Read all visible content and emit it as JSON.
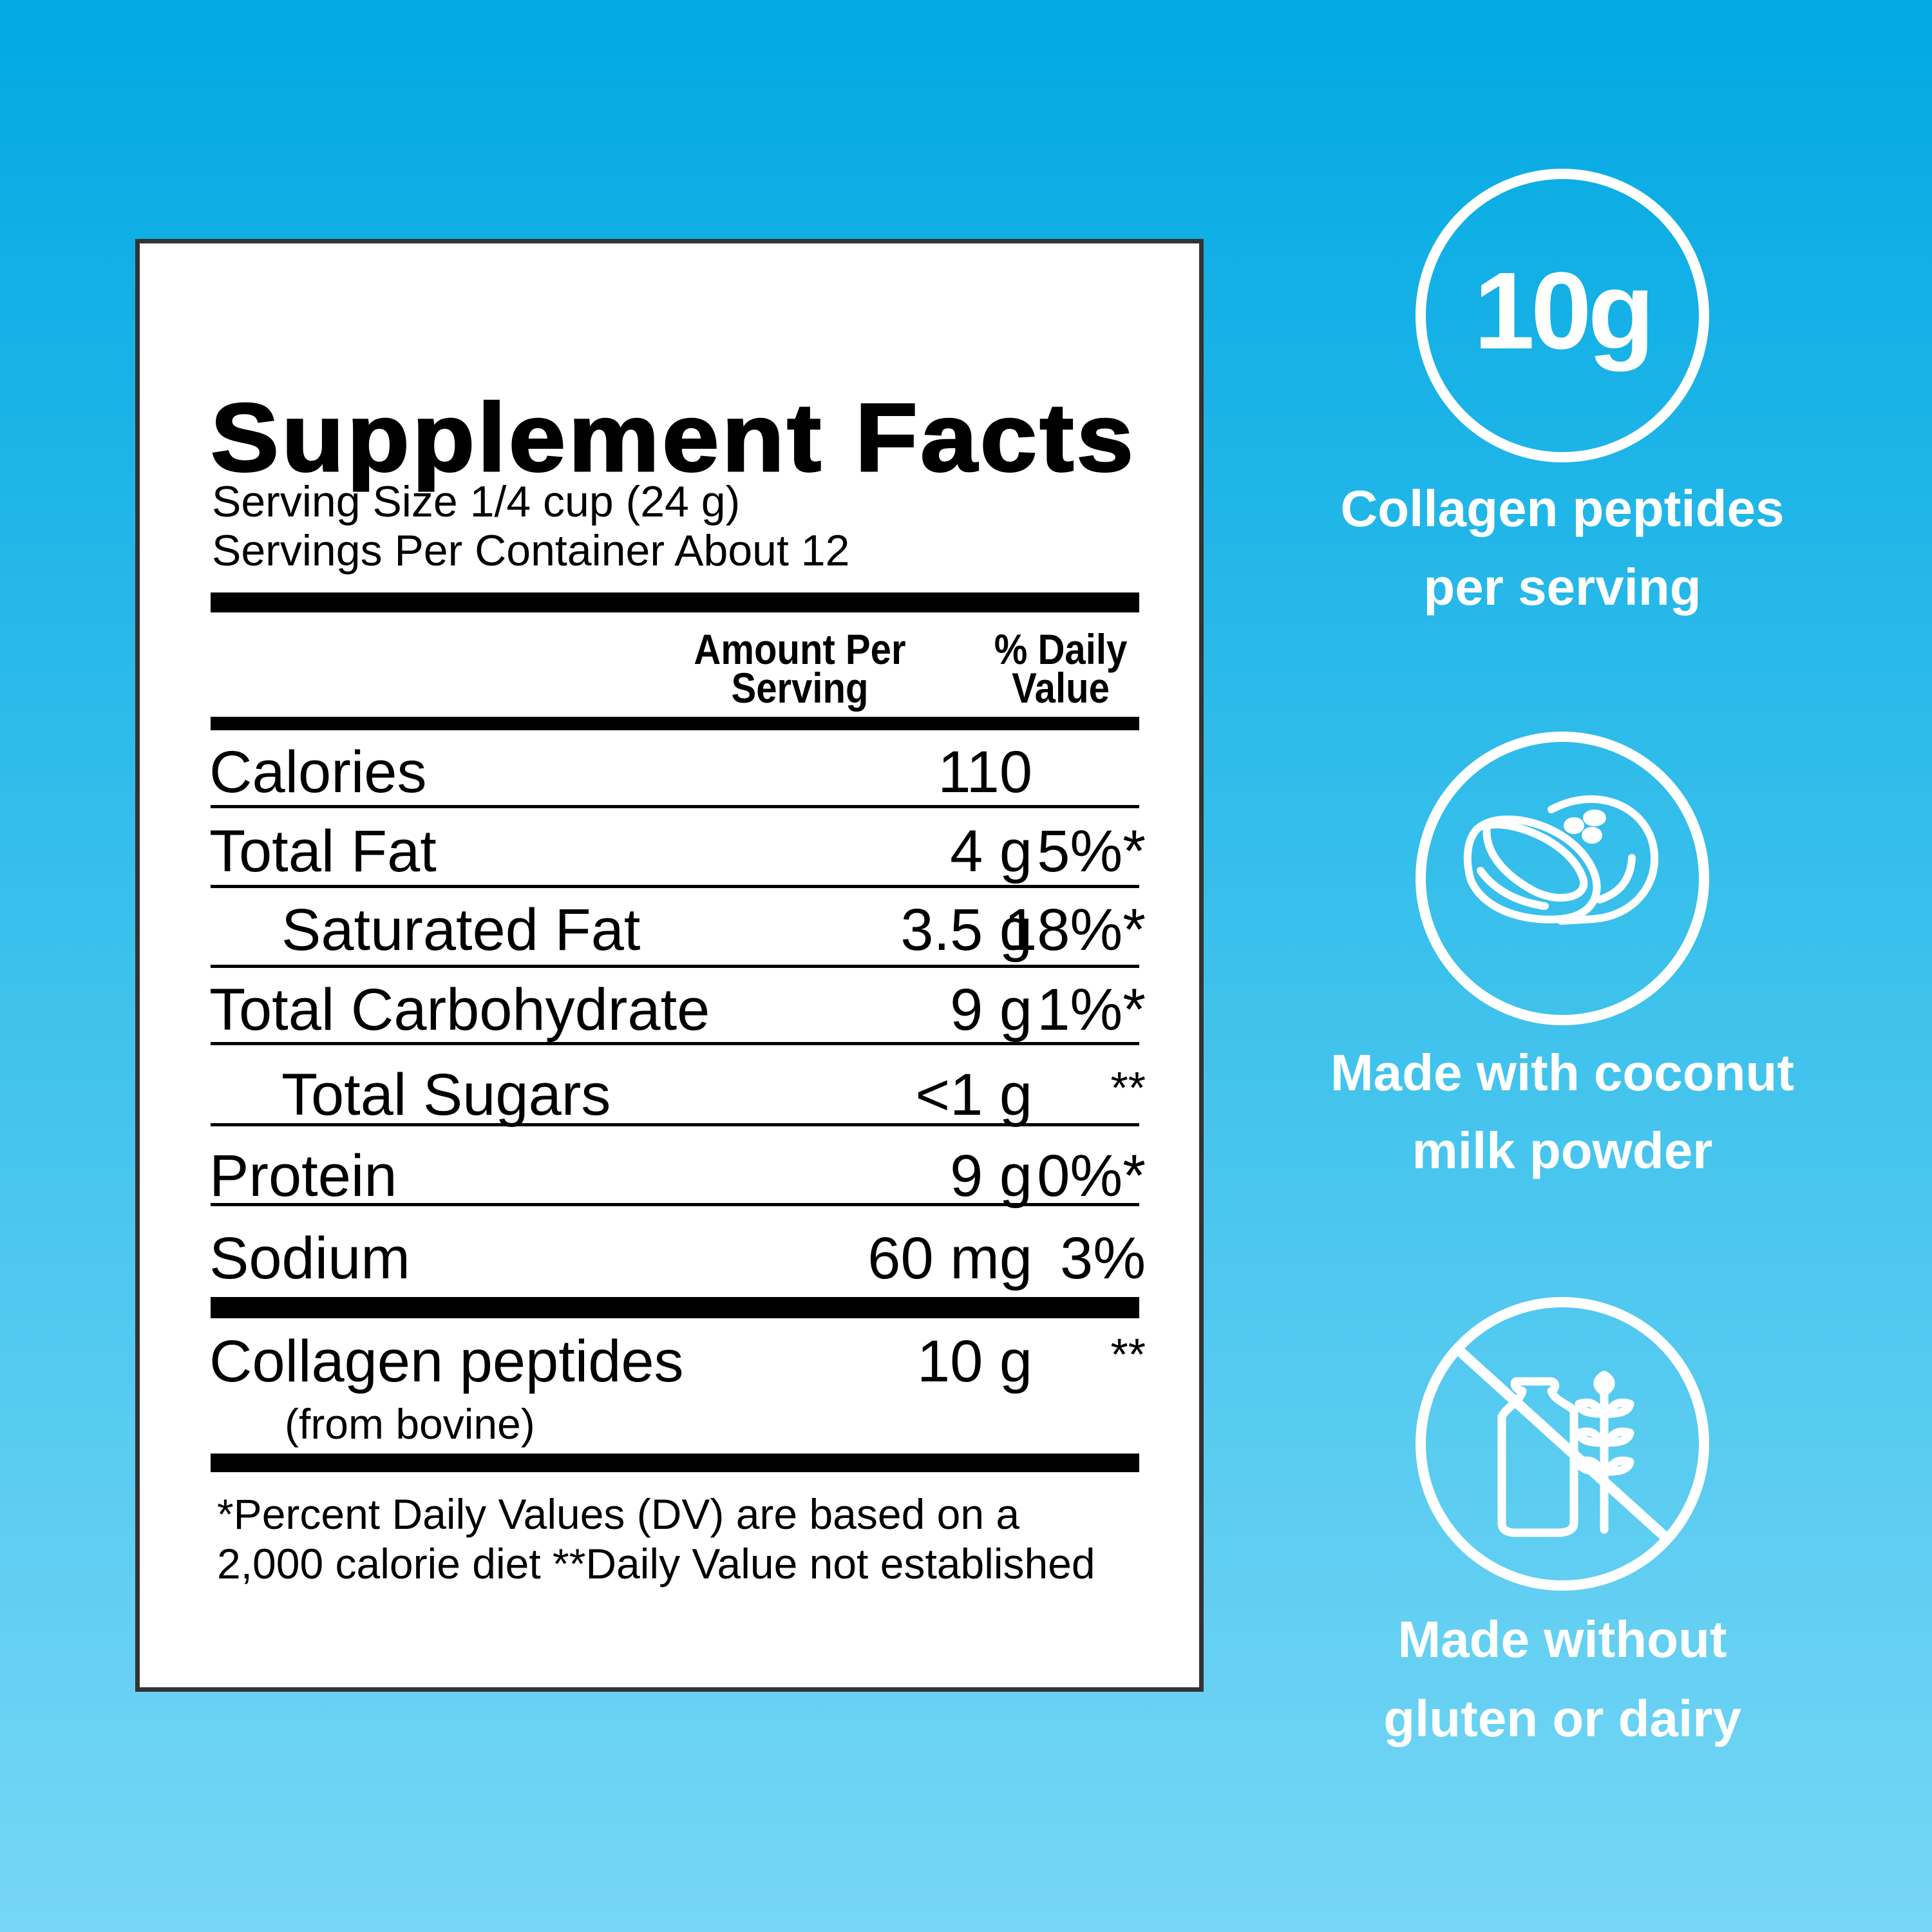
{
  "facts": {
    "title": "Supplement Facts",
    "serving_size": "Serving Size 1/4 cup (24 g)",
    "servings_per_container": "Servings Per Container About 12",
    "header_amount_line1": "Amount Per",
    "header_amount_line2": "Serving",
    "header_dv_line1": "% Daily",
    "header_dv_line2": "Value",
    "rows": [
      {
        "name": "Calories",
        "amount": "110",
        "dv": "",
        "indent": false
      },
      {
        "name": "Total Fat",
        "amount": "4 g",
        "dv": "5%*",
        "indent": false
      },
      {
        "name": "Saturated Fat",
        "amount": "3.5 g",
        "dv": "18%*",
        "indent": true
      },
      {
        "name": "Total Carbohydrate",
        "amount": "9 g",
        "dv": "1%*",
        "indent": false
      },
      {
        "name": "Total Sugars",
        "amount": "<1 g",
        "dv": "**",
        "indent": true
      },
      {
        "name": "Protein",
        "amount": "9 g",
        "dv": "0%*",
        "indent": false
      },
      {
        "name": "Sodium",
        "amount": "60 mg",
        "dv": "3%",
        "indent": false
      }
    ],
    "collagen": {
      "name": "Collagen peptides",
      "source": "(from bovine)",
      "amount": "10 g",
      "dv": "**"
    },
    "footnote_line1": "*Percent Daily Values (DV) are based on a",
    "footnote_line2": "2,000 calorie diet **Daily Value not established"
  },
  "badges": [
    {
      "value": "10g",
      "line1": "Collagen peptides",
      "line2": "per serving"
    },
    {
      "icon": "coconut-icon",
      "line1": "Made with coconut",
      "line2": "milk powder"
    },
    {
      "icon": "no-gluten-dairy-icon",
      "line1": "Made without",
      "line2": "gluten or dairy"
    }
  ],
  "colors": {
    "background_top": "#02a9e3",
    "background_bottom": "#76d6f5",
    "badge": "#ffffff"
  }
}
